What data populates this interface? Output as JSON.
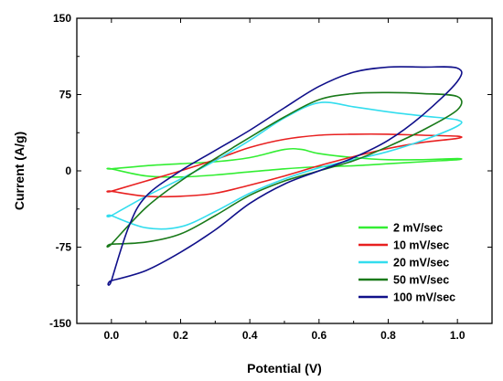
{
  "chart_data": {
    "type": "line",
    "xlabel": "Potential (V)",
    "ylabel": "Current (A/g)",
    "xlim": [
      -0.1,
      1.1
    ],
    "ylim": [
      -150,
      150
    ],
    "x_ticks": [
      0.0,
      0.2,
      0.4,
      0.6,
      0.8,
      1.0
    ],
    "x_tick_labels": [
      "0.0",
      "0.2",
      "0.4",
      "0.6",
      "0.8",
      "1.0"
    ],
    "y_ticks": [
      -150,
      -75,
      0,
      75,
      150
    ],
    "y_tick_labels": [
      "-150",
      "-75",
      "0",
      "75",
      "150"
    ],
    "grid": false,
    "legend_position": "bottom-right",
    "series": [
      {
        "name": "2 mV/sec",
        "color": "#33ee33",
        "x": [
          0.0,
          0.1,
          0.2,
          0.3,
          0.4,
          0.5,
          0.55,
          0.6,
          0.7,
          0.8,
          0.9,
          1.0,
          1.0,
          0.9,
          0.8,
          0.7,
          0.6,
          0.5,
          0.4,
          0.3,
          0.2,
          0.1,
          0.0
        ],
        "y": [
          2,
          5,
          7,
          9,
          13,
          21,
          21,
          17,
          13,
          11,
          11,
          12,
          11,
          9,
          7,
          5,
          4,
          2,
          -1,
          -4,
          -6,
          -5,
          2
        ]
      },
      {
        "name": "10 mV/sec",
        "color": "#e82020",
        "x": [
          0.0,
          0.1,
          0.2,
          0.3,
          0.4,
          0.5,
          0.6,
          0.7,
          0.8,
          0.9,
          1.0,
          1.0,
          0.9,
          0.8,
          0.7,
          0.6,
          0.5,
          0.4,
          0.3,
          0.2,
          0.1,
          0.0
        ],
        "y": [
          -20,
          -10,
          0,
          11,
          23,
          31,
          35,
          36,
          36,
          35,
          34,
          32,
          28,
          22,
          14,
          5,
          -5,
          -14,
          -22,
          -25,
          -25,
          -20
        ]
      },
      {
        "name": "20 mV/sec",
        "color": "#33ddee",
        "x": [
          0.0,
          0.1,
          0.2,
          0.3,
          0.4,
          0.5,
          0.6,
          0.7,
          0.8,
          0.9,
          1.0,
          1.0,
          0.9,
          0.8,
          0.7,
          0.6,
          0.5,
          0.4,
          0.3,
          0.2,
          0.1,
          0.0
        ],
        "y": [
          -44,
          -25,
          -8,
          10,
          30,
          52,
          67,
          63,
          58,
          54,
          50,
          44,
          30,
          19,
          11,
          3,
          -8,
          -22,
          -40,
          -55,
          -56,
          -44
        ]
      },
      {
        "name": "50 mV/sec",
        "color": "#1a7a1a",
        "x": [
          0.0,
          0.1,
          0.2,
          0.3,
          0.4,
          0.5,
          0.6,
          0.7,
          0.8,
          0.9,
          1.0,
          1.0,
          0.9,
          0.8,
          0.7,
          0.6,
          0.5,
          0.4,
          0.3,
          0.2,
          0.1,
          0.0
        ],
        "y": [
          -72,
          -36,
          -10,
          12,
          33,
          53,
          70,
          76,
          77,
          76,
          73,
          60,
          40,
          24,
          10,
          0,
          -10,
          -24,
          -44,
          -62,
          -70,
          -72
        ]
      },
      {
        "name": "100 mV/sec",
        "color": "#10108a",
        "x": [
          0.0,
          0.05,
          0.1,
          0.2,
          0.3,
          0.4,
          0.5,
          0.6,
          0.7,
          0.8,
          0.9,
          1.0,
          1.0,
          0.9,
          0.8,
          0.7,
          0.6,
          0.5,
          0.4,
          0.3,
          0.2,
          0.1,
          0.0
        ],
        "y": [
          -108,
          -55,
          -25,
          0,
          20,
          40,
          62,
          83,
          97,
          102,
          102,
          101,
          88,
          55,
          30,
          13,
          0,
          -13,
          -32,
          -58,
          -80,
          -98,
          -108
        ]
      }
    ]
  }
}
